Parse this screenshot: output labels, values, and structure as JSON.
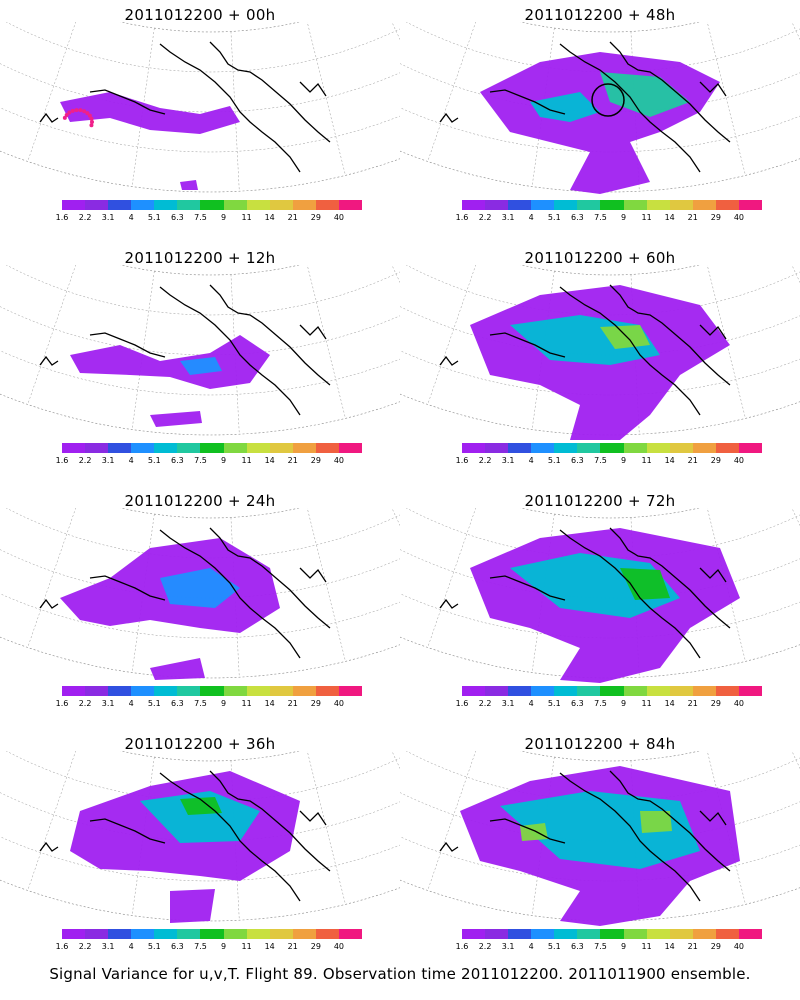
{
  "panels": [
    {
      "title": "2011012200 + 00h",
      "level": 0,
      "marker": "dots"
    },
    {
      "title": "2011012200 + 48h",
      "level": 4,
      "marker": "circle"
    },
    {
      "title": "2011012200 + 12h",
      "level": 1,
      "marker": ""
    },
    {
      "title": "2011012200 + 60h",
      "level": 5,
      "marker": ""
    },
    {
      "title": "2011012200 + 24h",
      "level": 2,
      "marker": ""
    },
    {
      "title": "2011012200 + 72h",
      "level": 6,
      "marker": ""
    },
    {
      "title": "2011012200 + 36h",
      "level": 3,
      "marker": ""
    },
    {
      "title": "2011012200 + 84h",
      "level": 7,
      "marker": ""
    }
  ],
  "colorbar": {
    "labels": [
      "1.6",
      "2.2",
      "3.1",
      "4",
      "5.1",
      "6.3",
      "7.5",
      "9",
      "11",
      "14",
      "21",
      "29",
      "40"
    ],
    "colors": [
      "#a020f0",
      "#8a2be2",
      "#3050e0",
      "#1e90ff",
      "#00bcd4",
      "#20c8a0",
      "#10c020",
      "#80d840",
      "#c8e040",
      "#e0c840",
      "#f0a040",
      "#f06040",
      "#f01880"
    ]
  },
  "caption": "Signal Variance for u,v,T. Flight 89. Observation time 2011012200. 2011011900 ensemble."
}
